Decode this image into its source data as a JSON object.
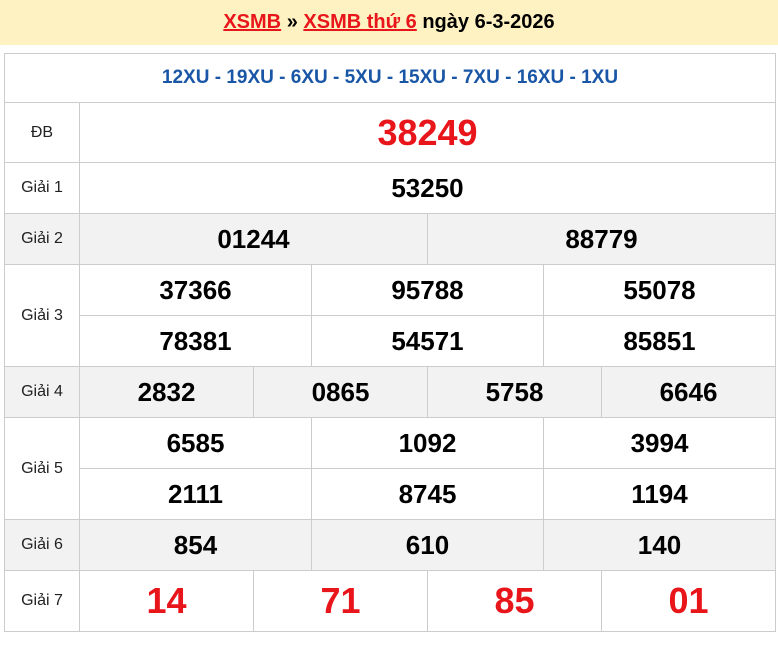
{
  "header": {
    "link1": "XSMB",
    "sep": "»",
    "link2": "XSMB thứ 6",
    "date_text": "ngày 6-3-2026"
  },
  "codes": "12XU - 19XU - 6XU - 5XU - 15XU - 7XU - 16XU - 1XU",
  "prizes": {
    "db": {
      "label": "ĐB",
      "numbers": [
        "38249"
      ]
    },
    "g1": {
      "label": "Giải 1",
      "numbers": [
        "53250"
      ]
    },
    "g2": {
      "label": "Giải 2",
      "numbers": [
        "01244",
        "88779"
      ]
    },
    "g3": {
      "label": "Giải 3",
      "numbers": [
        "37366",
        "95788",
        "55078",
        "78381",
        "54571",
        "85851"
      ]
    },
    "g4": {
      "label": "Giải 4",
      "numbers": [
        "2832",
        "0865",
        "5758",
        "6646"
      ]
    },
    "g5": {
      "label": "Giải 5",
      "numbers": [
        "6585",
        "1092",
        "3994",
        "2111",
        "8745",
        "1194"
      ]
    },
    "g6": {
      "label": "Giải 6",
      "numbers": [
        "854",
        "610",
        "140"
      ]
    },
    "g7": {
      "label": "Giải 7",
      "numbers": [
        "14",
        "71",
        "85",
        "01"
      ]
    }
  }
}
